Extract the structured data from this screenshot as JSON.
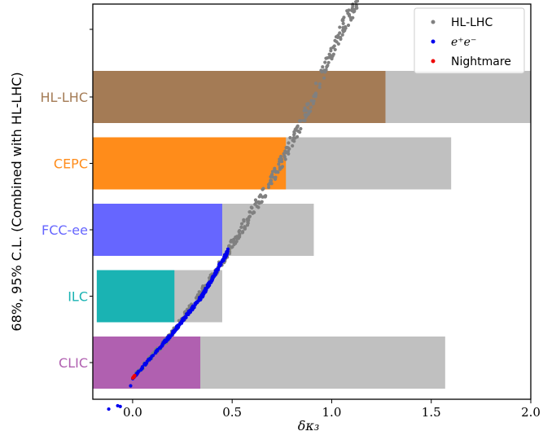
{
  "chart_data": {
    "type": "bar",
    "orientation": "horizontal",
    "title": "",
    "ylabel": "68%, 95% C.L. (Combined with HL-LHC)",
    "xlabel": "δκ₃",
    "xlim": [
      -0.2,
      2.0
    ],
    "xticks": [
      0.0,
      0.5,
      1.0,
      1.5,
      2.0
    ],
    "xtick_labels": [
      "0.0",
      "0.5",
      "1.0",
      "1.5",
      "2.0"
    ],
    "categories": [
      "HL-LHC",
      "CEPC",
      "FCC-ee",
      "ILC",
      "CLIC"
    ],
    "category_colors": [
      "#a47b55",
      "#ff8c1a",
      "#6666ff",
      "#1ab3b3",
      "#b060b0"
    ],
    "bar_95_color": "#c0c0c0",
    "bars_68": [
      [
        -0.2,
        1.27
      ],
      [
        -0.2,
        0.77
      ],
      [
        -0.2,
        0.45
      ],
      [
        -0.18,
        0.21
      ],
      [
        -0.2,
        0.34
      ]
    ],
    "bars_95": [
      [
        -0.2,
        2.0
      ],
      [
        -0.2,
        1.6
      ],
      [
        -0.2,
        0.91
      ],
      [
        -0.18,
        0.45
      ],
      [
        -0.2,
        1.57
      ]
    ],
    "legend": {
      "placement": "top-right",
      "entries": [
        {
          "label": "HL-LHC",
          "math": false,
          "color": "#808080"
        },
        {
          "label": "e⁺e⁻",
          "math": true,
          "color": "#0000ee"
        },
        {
          "label": "Nightmare",
          "math": false,
          "color": "#ee0000"
        }
      ]
    },
    "scatter_series": [
      {
        "name": "HL-LHC",
        "color": "#808080",
        "curve": [
          [
            0.0,
            0.0
          ],
          [
            0.2,
            0.12
          ],
          [
            0.4,
            0.27
          ],
          [
            0.55,
            0.4
          ],
          [
            0.7,
            0.53
          ],
          [
            0.8,
            0.63
          ],
          [
            0.9,
            0.74
          ],
          [
            0.98,
            0.84
          ],
          [
            1.05,
            0.93
          ],
          [
            1.12,
            1.0
          ]
        ],
        "xrange": [
          0.0,
          1.13
        ],
        "count": 380,
        "jitter": 0.018,
        "seed": 7
      },
      {
        "name": "e⁺e⁻",
        "color": "#0000ee",
        "curve": [
          [
            -0.13,
            -0.085
          ],
          [
            0.0,
            0.0
          ],
          [
            0.2,
            0.12
          ],
          [
            0.35,
            0.22
          ],
          [
            0.48,
            0.34
          ]
        ],
        "xrange": [
          0.0,
          0.48
        ],
        "count": 240,
        "jitter": 0.008,
        "seed": 11,
        "extra_points": [
          [
            -0.12,
            -0.082
          ],
          [
            -0.075,
            -0.073
          ],
          [
            -0.062,
            -0.075
          ],
          [
            -0.01,
            -0.02
          ]
        ]
      },
      {
        "name": "Nightmare",
        "color": "#ee0000",
        "curve": [
          [
            0.0,
            0.0
          ],
          [
            0.012,
            0.008
          ]
        ],
        "xrange": [
          0.0,
          0.012
        ],
        "count": 14,
        "jitter": 0.002,
        "seed": 3
      }
    ]
  }
}
